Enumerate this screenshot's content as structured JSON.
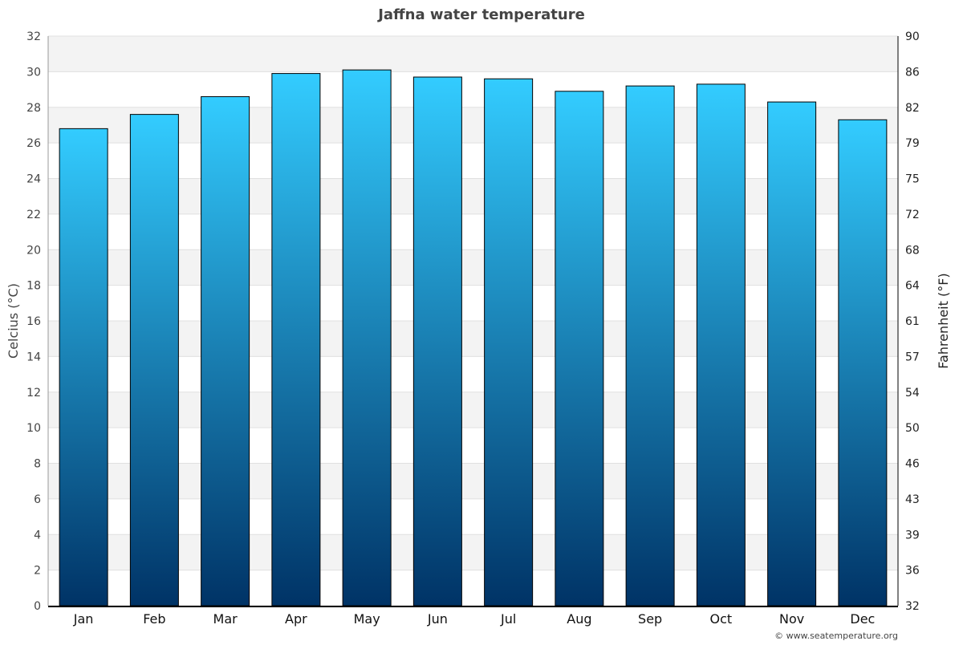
{
  "chart_data": {
    "type": "bar",
    "title": "Jaffna water temperature",
    "ylabel": "Celcius (°C)",
    "y2label": "Fahrenheit (°F)",
    "categories": [
      "Jan",
      "Feb",
      "Mar",
      "Apr",
      "May",
      "Jun",
      "Jul",
      "Aug",
      "Sep",
      "Oct",
      "Nov",
      "Dec"
    ],
    "values": [
      26.8,
      27.6,
      28.6,
      29.9,
      30.1,
      29.7,
      29.6,
      28.9,
      29.2,
      29.3,
      28.3,
      27.3
    ],
    "ylim": [
      0,
      32
    ],
    "yticks": [
      0,
      2,
      4,
      6,
      8,
      10,
      12,
      14,
      16,
      18,
      20,
      22,
      24,
      26,
      28,
      30,
      32
    ],
    "y2ticks": [
      32,
      36,
      39,
      43,
      46,
      50,
      54,
      57,
      61,
      64,
      68,
      72,
      75,
      79,
      82,
      86,
      90
    ],
    "grid": true,
    "legend": "none",
    "colors": {
      "bar_top": "#33ccff",
      "bar_bottom": "#003366",
      "band": "#f3f3f3",
      "text": "#444444"
    }
  },
  "credit": "© www.seatemperature.org"
}
